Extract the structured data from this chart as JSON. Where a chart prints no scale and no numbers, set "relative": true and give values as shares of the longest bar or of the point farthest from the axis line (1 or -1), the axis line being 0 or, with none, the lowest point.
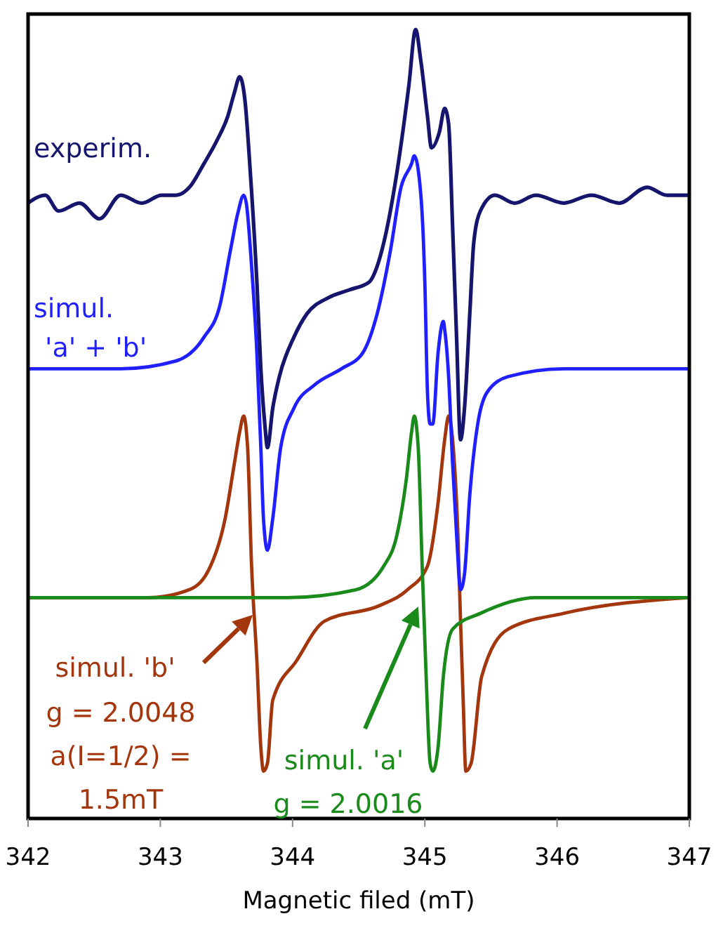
{
  "chart_data": {
    "type": "line",
    "relative": true,
    "xlabel": "Magnetic filed (mT)",
    "xlim": [
      342,
      347
    ],
    "xticks": [
      342,
      343,
      344,
      345,
      346,
      347
    ],
    "grid": false,
    "line_style": "solid",
    "series": [
      {
        "name": "experim.",
        "color": "#15156e",
        "x": [
          342,
          342.13,
          342.23,
          342.39,
          342.54,
          342.7,
          342.86,
          343.01,
          343.12,
          343.22,
          343.33,
          343.43,
          343.51,
          343.56,
          343.6,
          343.64,
          343.68,
          343.73,
          343.76,
          343.79,
          343.81,
          343.85,
          343.9,
          344.01,
          344.11,
          344.27,
          344.43,
          344.58,
          344.64,
          344.69,
          344.79,
          344.88,
          344.93,
          344.97,
          345.02,
          345.05,
          345.11,
          345.15,
          345.18,
          345.21,
          345.24,
          345.27,
          345.3,
          345.34,
          345.37,
          345.42,
          345.53,
          345.68,
          345.84,
          346.05,
          346.26,
          346.47,
          346.68,
          346.83,
          346.99
        ],
        "values": [
          0.78,
          0.79,
          0.77,
          0.78,
          0.76,
          0.79,
          0.78,
          0.79,
          0.79,
          0.8,
          0.83,
          0.86,
          0.89,
          0.92,
          0.94,
          0.91,
          0.82,
          0.68,
          0.57,
          0.5,
          0.47,
          0.52,
          0.56,
          0.61,
          0.64,
          0.66,
          0.67,
          0.68,
          0.7,
          0.73,
          0.82,
          0.93,
          1.0,
          0.96,
          0.89,
          0.85,
          0.87,
          0.9,
          0.88,
          0.75,
          0.61,
          0.48,
          0.52,
          0.64,
          0.73,
          0.77,
          0.79,
          0.78,
          0.79,
          0.78,
          0.79,
          0.78,
          0.8,
          0.79,
          0.79
        ]
      },
      {
        "name": "simul.\n'a' + 'b'",
        "color": "#1f1fff",
        "x": [
          342,
          342.7,
          343.12,
          343.33,
          343.45,
          343.53,
          343.59,
          343.63,
          343.65,
          343.69,
          343.73,
          343.76,
          343.78,
          343.81,
          343.85,
          343.91,
          344.01,
          344.17,
          344.37,
          344.53,
          344.64,
          344.74,
          344.82,
          344.9,
          344.92,
          344.97,
          345,
          345.02,
          345.04,
          345.06,
          345.1,
          345.14,
          345.15,
          345.18,
          345.21,
          345.24,
          345.27,
          345.3,
          345.34,
          345.4,
          345.47,
          345.63,
          346.05,
          346.99
        ],
        "values": [
          0.57,
          0.57,
          0.58,
          0.61,
          0.65,
          0.72,
          0.77,
          0.79,
          0.78,
          0.7,
          0.59,
          0.47,
          0.38,
          0.34,
          0.38,
          0.47,
          0.52,
          0.55,
          0.57,
          0.59,
          0.64,
          0.72,
          0.8,
          0.83,
          0.84,
          0.79,
          0.68,
          0.54,
          0.5,
          0.5,
          0.59,
          0.63,
          0.62,
          0.56,
          0.45,
          0.36,
          0.29,
          0.31,
          0.41,
          0.5,
          0.54,
          0.56,
          0.57,
          0.57
        ]
      },
      {
        "name": "simul. 'b'",
        "color": "#a3360c",
        "x": [
          342,
          342.91,
          343.22,
          343.38,
          343.49,
          343.56,
          343.6,
          343.63,
          343.66,
          343.69,
          343.73,
          343.76,
          343.78,
          343.81,
          343.85,
          344.03,
          344.24,
          344.66,
          344.87,
          345.02,
          345.1,
          345.15,
          345.18,
          345.21,
          345.25,
          345.27,
          345.29,
          345.31,
          345.35,
          345.43,
          345.63,
          346.05,
          346.99
        ],
        "values": [
          0.28,
          0.28,
          0.29,
          0.32,
          0.38,
          0.45,
          0.49,
          0.51,
          0.47,
          0.32,
          0.2,
          0.09,
          0.06,
          0.07,
          0.15,
          0.2,
          0.25,
          0.27,
          0.29,
          0.32,
          0.4,
          0.48,
          0.51,
          0.48,
          0.36,
          0.25,
          0.15,
          0.06,
          0.07,
          0.18,
          0.24,
          0.26,
          0.28
        ]
      },
      {
        "name": "simul. 'a'",
        "color": "#1a8a1a",
        "x": [
          342,
          343.96,
          344.48,
          344.69,
          344.79,
          344.86,
          344.9,
          344.92,
          344.95,
          344.98,
          345.01,
          345.04,
          345.06,
          345.1,
          345.14,
          345.21,
          345.42,
          345.84,
          346.99
        ],
        "values": [
          0.28,
          0.28,
          0.29,
          0.32,
          0.36,
          0.43,
          0.49,
          0.51,
          0.47,
          0.32,
          0.18,
          0.07,
          0.06,
          0.09,
          0.18,
          0.24,
          0.26,
          0.28,
          0.28
        ]
      }
    ],
    "annotations": [
      "g = 2.0048\na(I=1/2) =\n1.5mT",
      "g = 2.0016"
    ]
  }
}
